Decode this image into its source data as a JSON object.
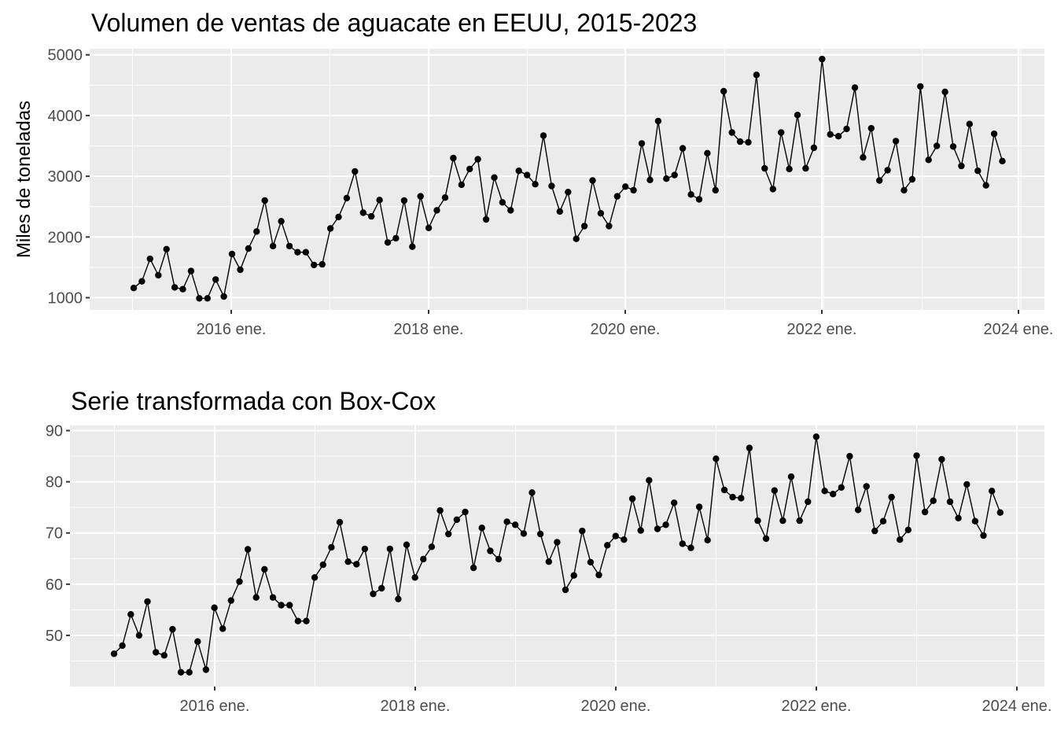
{
  "chart_data": [
    {
      "type": "line",
      "title": "Volumen de ventas de aguacate en EEUU, 2015-2023",
      "xlabel": "",
      "ylabel": "Miles de toneladas",
      "x_start": "2015-01",
      "x_step": "1 month",
      "x_ticks": [
        "2016 ene.",
        "2018 ene.",
        "2020 ene.",
        "2022 ene.",
        "2024 ene."
      ],
      "y_ticks": [
        1000,
        2000,
        3000,
        4000,
        5000
      ],
      "ylim": [
        800,
        5100
      ],
      "grid": true,
      "values": [
        1160,
        1270,
        1640,
        1370,
        1800,
        1170,
        1140,
        1440,
        990,
        990,
        1300,
        1020,
        1720,
        1460,
        1810,
        2090,
        2600,
        1850,
        2260,
        1850,
        1750,
        1750,
        1540,
        1550,
        2140,
        2330,
        2640,
        3080,
        2400,
        2340,
        2610,
        1910,
        1980,
        2600,
        1840,
        2670,
        2150,
        2440,
        2650,
        3300,
        2860,
        3120,
        3280,
        2290,
        2980,
        2570,
        2440,
        3090,
        3020,
        2870,
        3670,
        2840,
        2420,
        2740,
        1970,
        2180,
        2930,
        2390,
        2180,
        2670,
        2830,
        2770,
        3540,
        2940,
        3910,
        2960,
        3020,
        3460,
        2700,
        2620,
        3380,
        2770,
        4400,
        3720,
        3570,
        3560,
        4670,
        3130,
        2790,
        3720,
        3120,
        4010,
        3130,
        3470,
        4930,
        3690,
        3660,
        3780,
        4460,
        3310,
        3790,
        2930,
        3100,
        3580,
        2770,
        2950,
        4480,
        3270,
        3500,
        4390,
        3490,
        3170,
        3860,
        3090,
        2850,
        3700,
        3250
      ]
    },
    {
      "type": "line",
      "title": "Serie transformada con Box-Cox",
      "xlabel": "",
      "ylabel": "",
      "x_start": "2015-01",
      "x_step": "1 month",
      "x_ticks": [
        "2016 ene.",
        "2018 ene.",
        "2020 ene.",
        "2022 ene.",
        "2024 ene."
      ],
      "y_ticks": [
        50,
        60,
        70,
        80,
        90
      ],
      "ylim": [
        40,
        91
      ],
      "grid": true,
      "values": [
        46.4,
        48.0,
        54.1,
        50.0,
        56.6,
        46.7,
        46.1,
        51.2,
        42.8,
        42.8,
        48.8,
        43.3,
        55.4,
        51.3,
        56.8,
        60.5,
        66.8,
        57.4,
        62.9,
        57.4,
        55.9,
        55.9,
        52.8,
        52.8,
        61.3,
        63.8,
        67.2,
        72.1,
        64.4,
        63.9,
        66.9,
        58.1,
        59.2,
        66.9,
        57.1,
        67.7,
        61.3,
        64.9,
        67.3,
        74.4,
        69.8,
        72.6,
        74.1,
        63.2,
        71.0,
        66.5,
        64.9,
        72.2,
        71.6,
        69.9,
        77.9,
        69.8,
        64.4,
        68.2,
        58.9,
        61.7,
        70.4,
        64.3,
        61.8,
        67.6,
        69.4,
        68.7,
        76.7,
        70.5,
        80.3,
        70.8,
        71.6,
        75.9,
        67.9,
        67.1,
        75.1,
        68.6,
        84.5,
        78.4,
        77.0,
        76.8,
        86.6,
        72.4,
        68.9,
        78.3,
        72.4,
        81.0,
        72.4,
        76.1,
        88.8,
        78.2,
        77.6,
        78.9,
        85.0,
        74.5,
        79.1,
        70.4,
        72.3,
        77.0,
        68.7,
        70.6,
        85.1,
        74.1,
        76.3,
        84.4,
        76.1,
        72.9,
        79.5,
        72.3,
        69.5,
        78.2,
        74.0
      ]
    }
  ]
}
